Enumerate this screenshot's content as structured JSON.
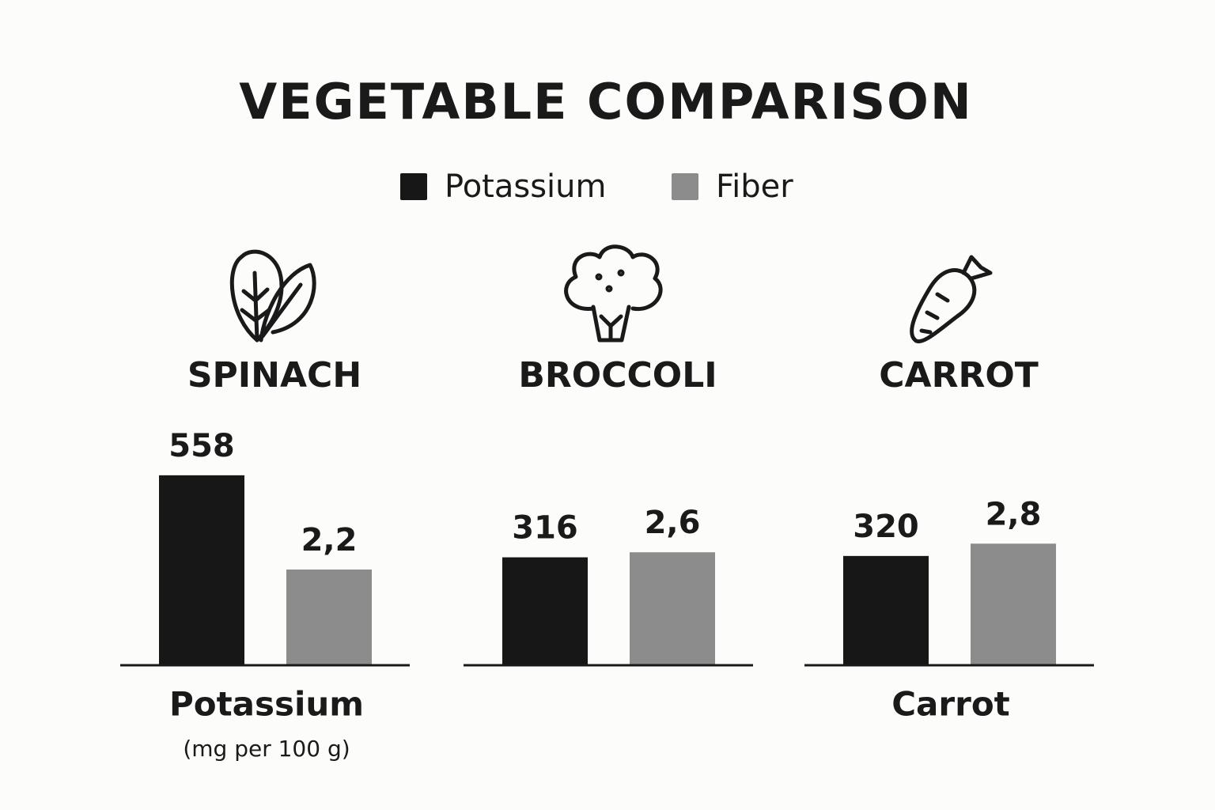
{
  "chart_data": {
    "type": "bar",
    "title": "VEGETABLE COMPARISON",
    "categories": [
      "SPINACH",
      "BROCCOLI",
      "CARROT"
    ],
    "series": [
      {
        "name": "Potassium",
        "color": "#171717",
        "values": [
          558,
          316,
          320
        ]
      },
      {
        "name": "Fiber",
        "color": "#8c8c8c",
        "values": [
          2.2,
          2.6,
          2.8
        ],
        "value_labels": [
          "2,2",
          "2,6",
          "2,8"
        ],
        "axis": "y2"
      }
    ],
    "ylim": [
      0,
      700
    ],
    "y2lim": [
      0,
      5.5
    ],
    "footer_labels": [
      "Potassium",
      null,
      "Carrot"
    ],
    "footer_note": "(mg per 100 g)"
  }
}
